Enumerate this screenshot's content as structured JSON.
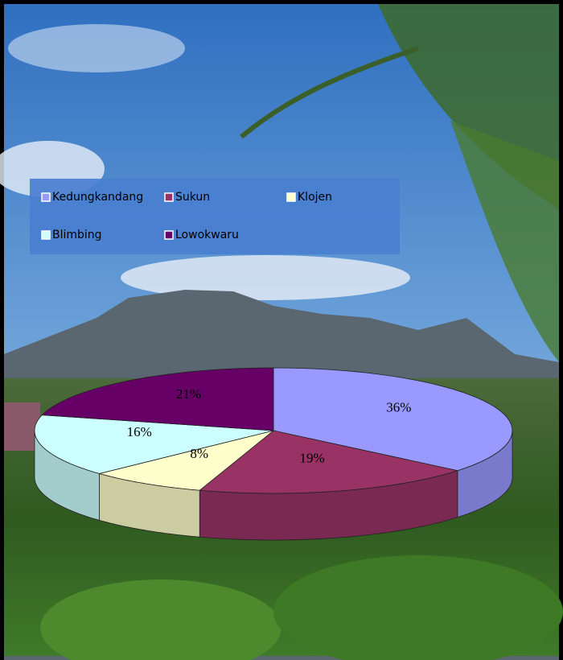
{
  "chart_data": {
    "type": "pie",
    "categories": [
      "Kedungkandang",
      "Sukun",
      "Klojen",
      "Blimbing",
      "Lowokwaru"
    ],
    "values": [
      36,
      19,
      8,
      16,
      21
    ],
    "value_labels": [
      "36%",
      "19%",
      "8%",
      "16%",
      "21%"
    ],
    "colors": [
      "#9999ff",
      "#993366",
      "#ffffcc",
      "#ccffff",
      "#660066"
    ],
    "legend": "top"
  }
}
